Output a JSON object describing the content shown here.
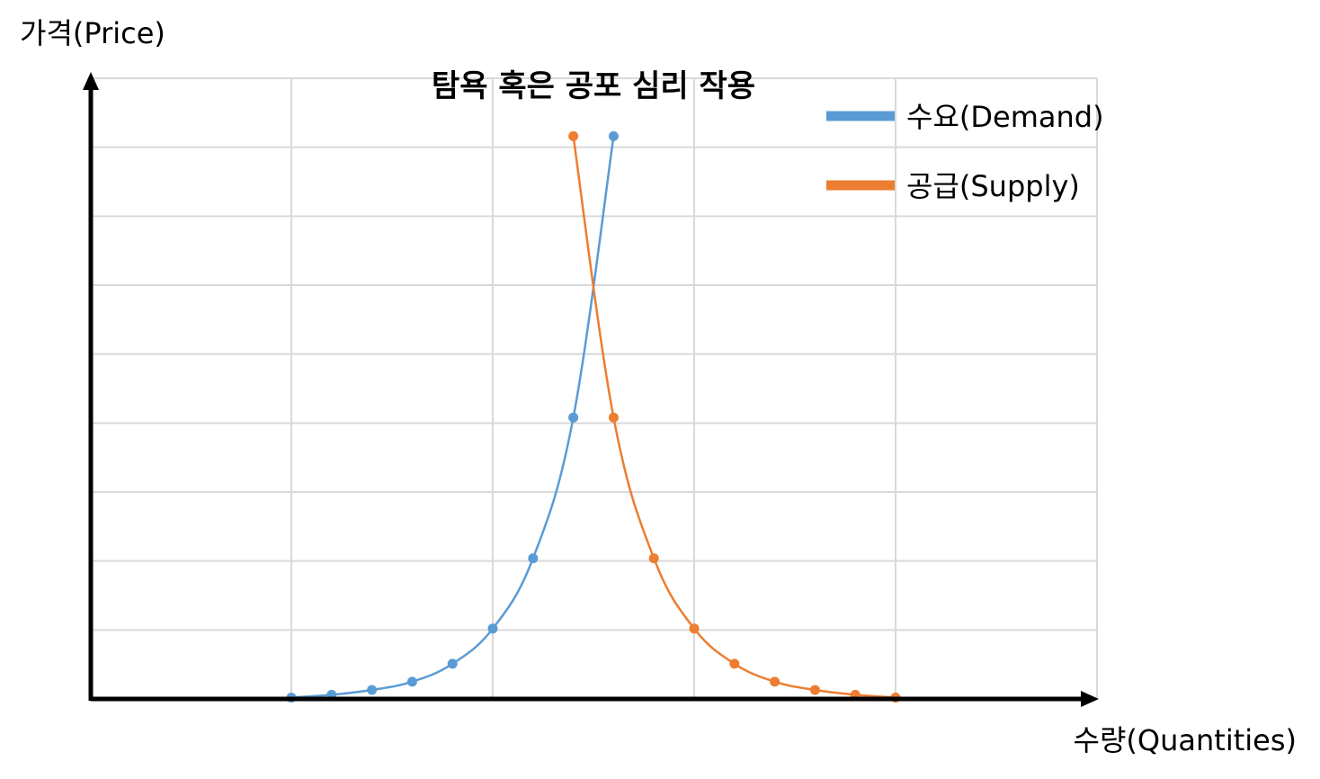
{
  "chart_data": {
    "type": "line",
    "title": "탐욕 혹은 공포 심리 작용",
    "xlabel": "수량(Quantities)",
    "ylabel": "가격(Price)",
    "xlim": [
      0,
      5
    ],
    "ylim": [
      0,
      9
    ],
    "grid": true,
    "legend": "top-right",
    "series": [
      {
        "name": "수요(Demand)",
        "color": "#5b9bd5",
        "x": [
          1.0,
          1.2,
          1.4,
          1.6,
          1.8,
          2.0,
          2.2,
          2.4,
          2.6
        ],
        "y": [
          0.02,
          0.06,
          0.13,
          0.25,
          0.51,
          1.02,
          2.04,
          4.08,
          8.16
        ]
      },
      {
        "name": "공급(Supply)",
        "color": "#ed7d31",
        "x": [
          2.4,
          2.6,
          2.8,
          3.0,
          3.2,
          3.4,
          3.6,
          3.8,
          4.0
        ],
        "y": [
          8.16,
          4.08,
          2.04,
          1.02,
          0.51,
          0.25,
          0.13,
          0.06,
          0.02
        ]
      }
    ]
  }
}
